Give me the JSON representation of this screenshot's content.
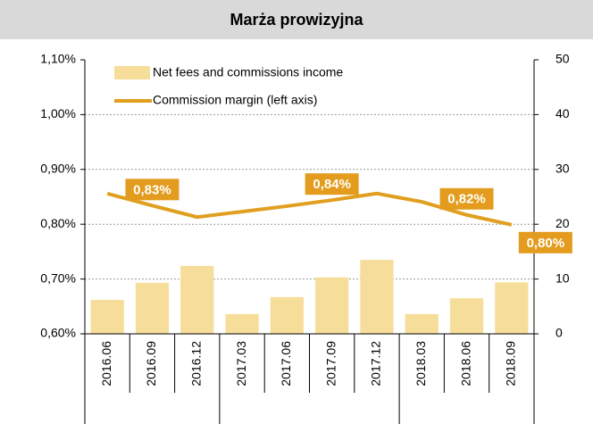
{
  "chart_data": {
    "type": "bar_line",
    "title": "Marża prowizyjna",
    "categories": [
      "2016.06",
      "2016.09",
      "2016.12",
      "2017.03",
      "2017.06",
      "2017.09",
      "2017.12",
      "2018.03",
      "2018.06",
      "2018.09"
    ],
    "series": [
      {
        "name": "Net fees and commissions income",
        "type": "bar",
        "axis": "y2",
        "color": "#f6de9a",
        "values": [
          6.2,
          9.3,
          12.4,
          3.6,
          6.7,
          10.3,
          13.5,
          3.6,
          6.5,
          9.4
        ]
      },
      {
        "name": "Commission margin (left axis)",
        "type": "line",
        "axis": "y",
        "color": "#e09f1f",
        "values": [
          0.856,
          0.834,
          0.813,
          0.823,
          0.833,
          0.844,
          0.856,
          0.841,
          0.817,
          0.799
        ],
        "value_labels": [
          null,
          "0,83%",
          null,
          null,
          null,
          "0,84%",
          null,
          null,
          "0,82%",
          "0,80%"
        ]
      }
    ],
    "ylim": [
      0.6,
      1.1
    ],
    "yticks": [
      {
        "value": 0.6,
        "label": "0,60%"
      },
      {
        "value": 0.7,
        "label": "0,70%"
      },
      {
        "value": 0.8,
        "label": "0,80%"
      },
      {
        "value": 0.9,
        "label": "0,90%"
      },
      {
        "value": 1.0,
        "label": "1,00%"
      },
      {
        "value": 1.1,
        "label": "1,10%"
      }
    ],
    "y2lim": [
      0,
      50
    ],
    "y2ticks": [
      0,
      10,
      20,
      30,
      40,
      50
    ],
    "grid": true,
    "legend": "upper left"
  }
}
